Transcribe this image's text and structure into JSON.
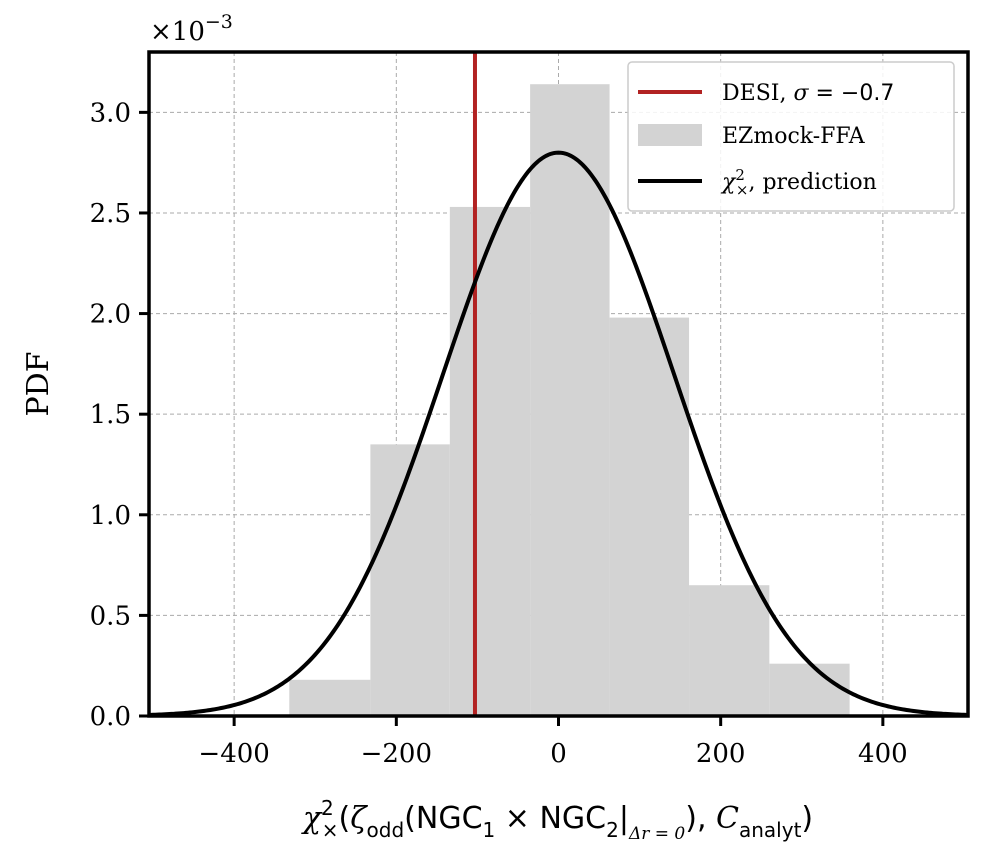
{
  "chart_data": {
    "type": "histogram",
    "title": "",
    "xlabel": {
      "chi": "χ",
      "chi_sup": "2",
      "chi_sub": "×",
      "part1": "(",
      "zeta": "ζ",
      "zeta_sub": "odd",
      "part2": "(NGC",
      "ngc1_sub": "1",
      "times": " × NGC",
      "ngc2_sub": "2",
      "bar": "|",
      "delta_sub": "Δr = 0",
      "part3": "), ",
      "c": "C",
      "c_sub": "analyt",
      "part4": ")"
    },
    "ylabel": "PDF",
    "y_offset_text": {
      "base": "×10",
      "exponent": "−3"
    },
    "xlim": [
      -505,
      505
    ],
    "ylim": [
      0,
      3.3
    ],
    "xticks": [
      -400,
      -200,
      0,
      200,
      400
    ],
    "xtick_labels": [
      "−400",
      "−200",
      "0",
      "200",
      "400"
    ],
    "yticks": [
      0.0,
      0.5,
      1.0,
      1.5,
      2.0,
      2.5,
      3.0
    ],
    "ytick_labels": [
      "0.0",
      "0.5",
      "1.0",
      "1.5",
      "2.0",
      "2.5",
      "3.0"
    ],
    "grid": true,
    "legend_position": "top-right",
    "histogram": {
      "name": "EZmock-FFA",
      "color": "#d3d3d3",
      "bin_edges": [
        -332,
        -232,
        -134,
        -35,
        63,
        161,
        260,
        359
      ],
      "values": [
        0.18,
        1.35,
        2.53,
        3.14,
        1.98,
        0.65,
        0.26
      ]
    },
    "vline": {
      "name": "DESI",
      "legend_label_prefix": "DESI, ",
      "legend_sigma_symbol": "σ",
      "legend_sigma_value": " = −0.7",
      "x": -103,
      "color": "#b22222"
    },
    "curve": {
      "name_symbol": "χ",
      "name_sup": "2",
      "name_sub": "×",
      "name_suffix": ", prediction",
      "type": "gaussian",
      "mean": 0,
      "std": 142.5,
      "peak": 2.8,
      "color": "#000000"
    }
  }
}
